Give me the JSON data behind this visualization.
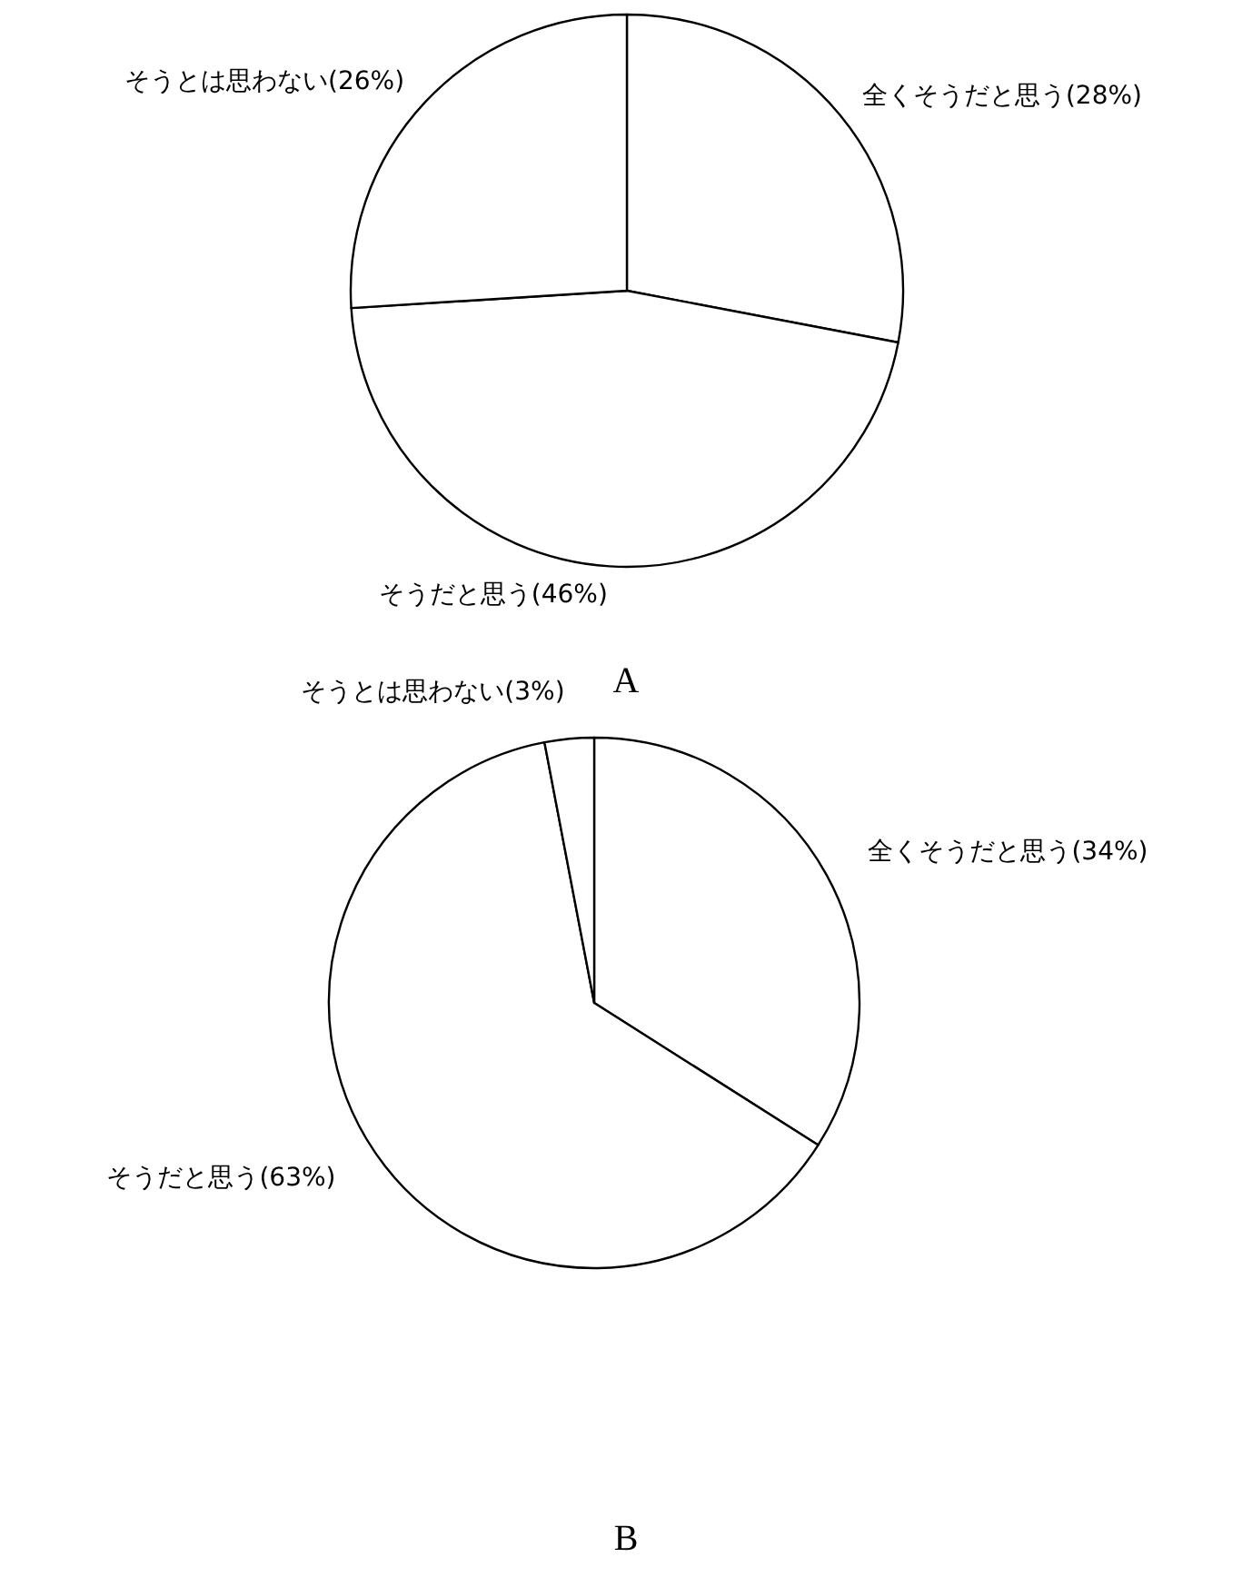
{
  "chart_data": [
    {
      "type": "pie",
      "title": "A",
      "categories": [
        "全くそうだと思う",
        "そうだと思う",
        "そうとは思わない"
      ],
      "values": [
        28,
        46,
        26
      ],
      "value_labels": [
        "(28%)",
        "(46%)",
        "(26%)"
      ],
      "colors": [
        "#ffffff",
        "#ffffff",
        "#ffffff"
      ]
    },
    {
      "type": "pie",
      "title": "B",
      "categories": [
        "全くそうだと思う",
        "そうだと思う",
        "そうとは思わない"
      ],
      "values": [
        34,
        63,
        3
      ],
      "value_labels": [
        "(34%)",
        "(63%)",
        "(3%)"
      ],
      "colors": [
        "#ffffff",
        "#ffffff",
        "#ffffff"
      ]
    }
  ]
}
